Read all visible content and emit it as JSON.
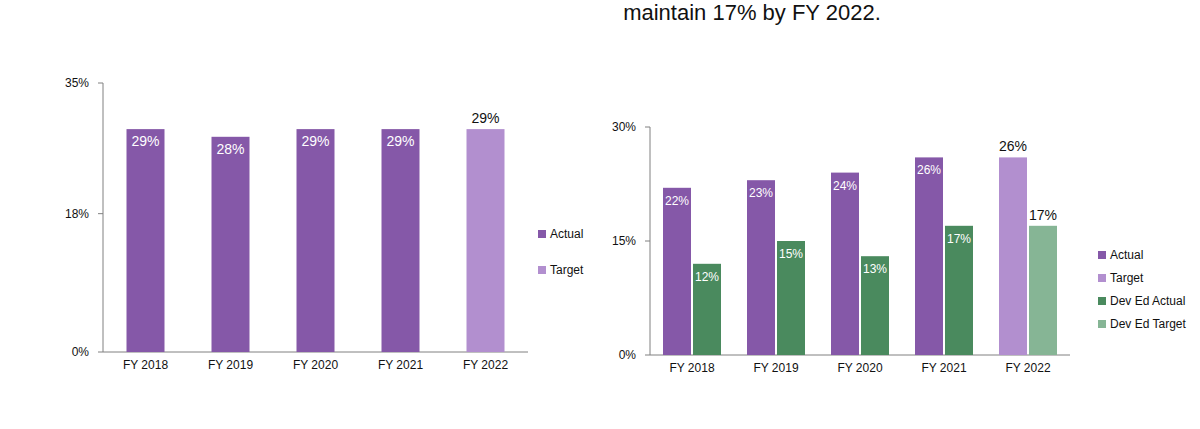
{
  "chart_data": [
    {
      "type": "bar",
      "categories": [
        "FY 2018",
        "FY 2019",
        "FY 2020",
        "FY 2021",
        "FY 2022"
      ],
      "series": [
        {
          "name": "Actual",
          "color": "#8558a8",
          "values": [
            29,
            28,
            29,
            29,
            null
          ],
          "value_labels": [
            "29%",
            "28%",
            "29%",
            "29%",
            null
          ]
        },
        {
          "name": "Target",
          "color": "#b28fcf",
          "values": [
            null,
            null,
            null,
            null,
            29
          ],
          "value_labels": [
            null,
            null,
            null,
            null,
            "29%"
          ]
        }
      ],
      "ylim": [
        0,
        35
      ],
      "yticks": [
        {
          "value": 0,
          "label": "0%"
        },
        {
          "value": 18,
          "label": "18%"
        },
        {
          "value": 35,
          "label": "35%"
        }
      ],
      "data_labels": true,
      "legend": "right",
      "grid": false
    },
    {
      "type": "bar",
      "title": "maintain 17% by FY 2022.",
      "categories": [
        "FY 2018",
        "FY 2019",
        "FY 2020",
        "FY 2021",
        "FY 2022"
      ],
      "series": [
        {
          "name": "Actual",
          "color": "#8558a8",
          "values": [
            22,
            23,
            24,
            26,
            null
          ],
          "value_labels": [
            "22%",
            "23%",
            "24%",
            "26%",
            null
          ]
        },
        {
          "name": "Target",
          "color": "#b28fcf",
          "values": [
            null,
            null,
            null,
            null,
            26
          ],
          "value_labels": [
            null,
            null,
            null,
            null,
            "26%"
          ]
        },
        {
          "name": "Dev Ed Actual",
          "color": "#4a8a5e",
          "values": [
            12,
            15,
            13,
            17,
            null
          ],
          "value_labels": [
            "12%",
            "15%",
            "13%",
            "17%",
            null
          ]
        },
        {
          "name": "Dev Ed Target",
          "color": "#86b595",
          "values": [
            null,
            null,
            null,
            null,
            17
          ],
          "value_labels": [
            null,
            null,
            null,
            null,
            "17%"
          ]
        }
      ],
      "ylim": [
        0,
        30
      ],
      "yticks": [
        {
          "value": 0,
          "label": "0%"
        },
        {
          "value": 15,
          "label": "15%"
        },
        {
          "value": 30,
          "label": "30%"
        }
      ],
      "data_labels": true,
      "legend": "right",
      "grid": false
    }
  ]
}
